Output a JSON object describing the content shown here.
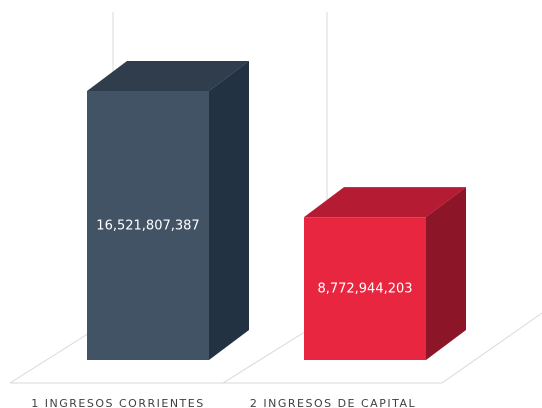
{
  "chart_data": {
    "type": "bar",
    "categories": [
      "1 INGRESOS CORRIENTES",
      "2 INGRESOS DE CAPITAL"
    ],
    "values": [
      16521807387,
      8772944203
    ],
    "value_labels": [
      "16,521,807,387",
      "8,772,944,203"
    ],
    "title": "",
    "xlabel": "",
    "ylabel": "",
    "ylim": [
      0,
      20000000000
    ],
    "grid": false,
    "legend": "none",
    "colors": {
      "bars": [
        "#435366",
        "#e8263f"
      ],
      "bar_tops": [
        "#2f3d4d",
        "#b51c33"
      ],
      "bar_sides": [
        "#233242",
        "#8d1528"
      ],
      "floor_lines": "#d9d9d9",
      "label_text": "#404040",
      "value_text": "#ffffff"
    }
  }
}
